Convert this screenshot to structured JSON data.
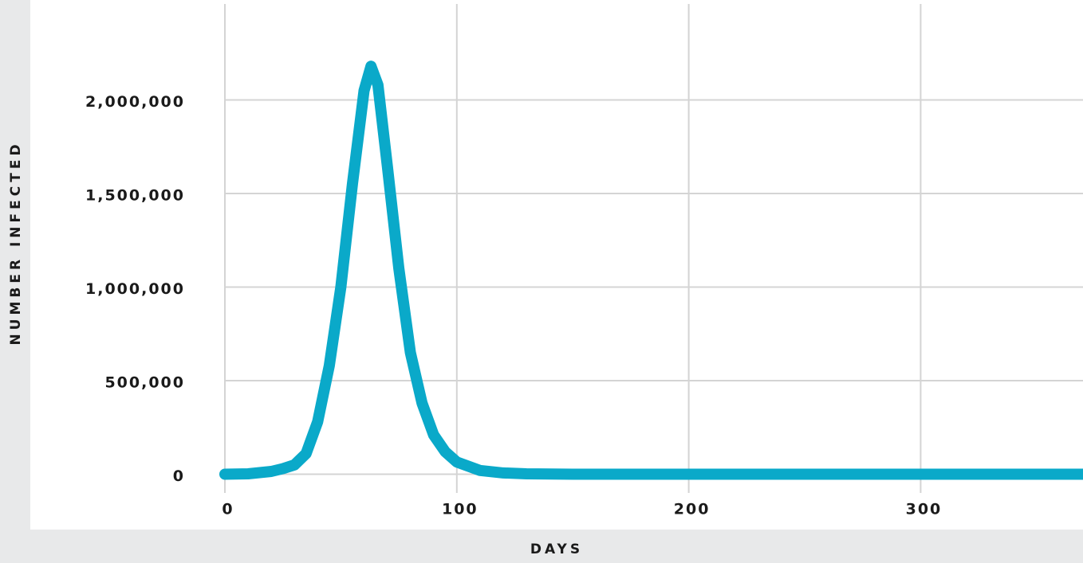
{
  "chart_data": {
    "type": "line",
    "x_label": "DAYS",
    "y_label": "NUMBER INFECTED",
    "x": [
      0,
      10,
      20,
      25,
      30,
      35,
      40,
      45,
      50,
      55,
      60,
      63,
      66,
      70,
      75,
      80,
      85,
      90,
      95,
      100,
      110,
      120,
      130,
      150,
      200,
      250,
      300,
      370
    ],
    "series": [
      {
        "name": "Infected",
        "color": "#0aa9c9",
        "values": [
          0,
          2000,
          15000,
          30000,
          50000,
          110000,
          280000,
          580000,
          1000000,
          1550000,
          2050000,
          2180000,
          2080000,
          1650000,
          1100000,
          650000,
          380000,
          210000,
          120000,
          65000,
          20000,
          7000,
          2000,
          0,
          0,
          0,
          0,
          0
        ]
      }
    ],
    "xlim": [
      0,
      370
    ],
    "xticks": [
      0,
      100,
      200,
      300
    ],
    "ylim": [
      -100000,
      2500000
    ],
    "yticks": [
      0,
      {
        "value": 500000,
        "label": "500,000"
      },
      {
        "value": 1000000,
        "label": "1,000,000"
      },
      {
        "value": 1500000,
        "label": "1,500,000"
      },
      {
        "value": 2000000,
        "label": "2,000,000"
      }
    ],
    "grid": true
  }
}
